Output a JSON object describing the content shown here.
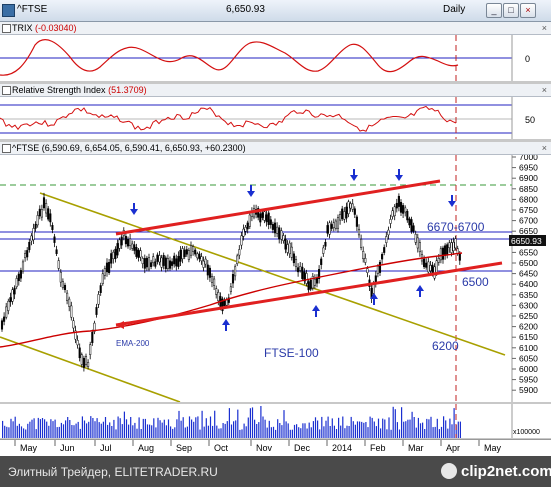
{
  "window": {
    "symbol": "^FTSE",
    "last_price": "6,650.93",
    "period": "Daily",
    "buttons": [
      "_",
      "□",
      "×"
    ]
  },
  "trix": {
    "label": "TRIX",
    "value": "(-0.03040)",
    "axis_label": "0"
  },
  "rsi": {
    "label": "Relative Strength Index",
    "value": "(51.3709)",
    "axis_label": "50"
  },
  "price_pane": {
    "header": "^FTSE (6,590.69, 6,654.05, 6,590.41, 6,650.93, +60.2300)",
    "price_badge": "6650.93",
    "y_ticks": [
      "7000",
      "6950",
      "6900",
      "6850",
      "6800",
      "6750",
      "6700",
      "6650",
      "6600",
      "6550",
      "6500",
      "6450",
      "6400",
      "6350",
      "6300",
      "6250",
      "6200",
      "6150",
      "6100",
      "6050",
      "6000",
      "5950",
      "5900"
    ],
    "annotations": {
      "resistance": "6670-6700",
      "support": "6500",
      "lower": "6200",
      "ema": "EMA-200",
      "index_name": "FTSE-100"
    },
    "colors": {
      "trend_channel": "#e02020",
      "ema": "#cc0000",
      "falling_channel": "#a8a000",
      "level_lines": "#2020c0",
      "arrows": "#1a2fd0",
      "text_annotations": "#2a3aa8"
    }
  },
  "volume_pane": {
    "multiplier_label": "x100000"
  },
  "x_axis": {
    "months": [
      "May",
      "Jun",
      "Jul",
      "Aug",
      "Sep",
      "Oct",
      "Nov",
      "Dec",
      "2014",
      "Feb",
      "Mar",
      "Apr",
      "May"
    ]
  },
  "footer": {
    "source": "Элитный Трейдер, ELITETRADER.RU",
    "brand": "clip2net.com"
  }
}
